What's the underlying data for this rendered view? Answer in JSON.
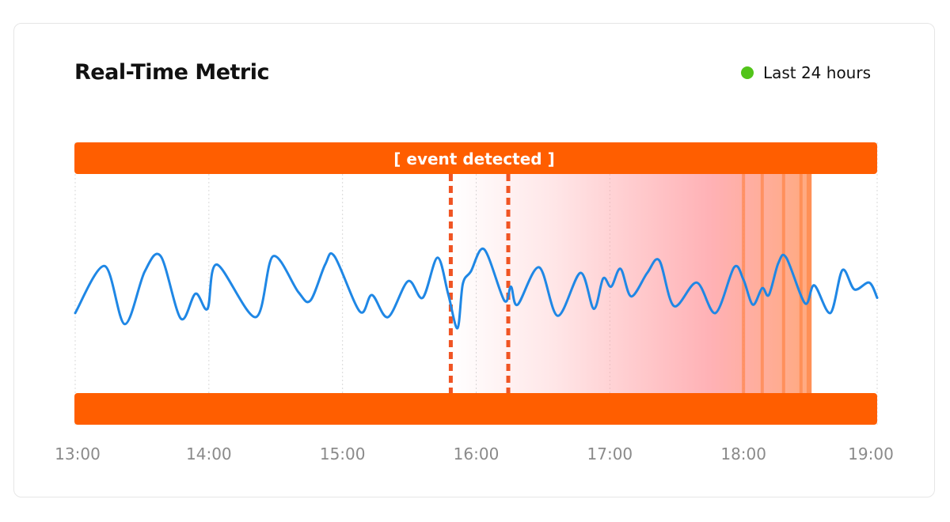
{
  "header": {
    "title": "Real-Time Metric",
    "legend_label": "Last 24 hours",
    "legend_color": "#52c41a"
  },
  "chart_data": {
    "type": "line",
    "title": "Real-Time Metric",
    "xlabel": "",
    "ylabel": "",
    "x_unit": "hours",
    "xlim": [
      13,
      19
    ],
    "ylim": [
      0,
      1
    ],
    "grid": true,
    "tick_values": [
      13,
      14,
      15,
      16,
      17,
      18,
      19
    ],
    "tick_labels": [
      "13:00",
      "14:00",
      "15:00",
      "16:00",
      "17:00",
      "18:00",
      "19:00"
    ],
    "line_color": "#1f87e5",
    "series": [
      {
        "name": "Metric",
        "x": [
          13.0,
          13.22,
          13.37,
          13.52,
          13.64,
          13.79,
          13.9,
          13.99,
          14.06,
          14.35,
          14.48,
          14.67,
          14.76,
          14.87,
          14.94,
          15.13,
          15.22,
          15.34,
          15.49,
          15.6,
          15.71,
          15.79,
          15.86,
          15.9,
          15.96,
          16.06,
          16.21,
          16.26,
          16.31,
          16.47,
          16.61,
          16.78,
          16.88,
          16.95,
          17.01,
          17.08,
          17.16,
          17.28,
          17.37,
          17.48,
          17.65,
          17.79,
          17.93,
          18.0,
          18.07,
          18.14,
          18.19,
          18.26,
          18.32,
          18.46,
          18.53,
          18.65,
          18.74,
          18.83,
          18.94,
          19.0
        ],
        "y": [
          0.31,
          0.65,
          0.23,
          0.61,
          0.72,
          0.27,
          0.45,
          0.34,
          0.66,
          0.28,
          0.72,
          0.46,
          0.4,
          0.66,
          0.72,
          0.32,
          0.44,
          0.28,
          0.54,
          0.42,
          0.71,
          0.45,
          0.2,
          0.52,
          0.61,
          0.77,
          0.4,
          0.5,
          0.37,
          0.64,
          0.29,
          0.6,
          0.34,
          0.56,
          0.5,
          0.63,
          0.43,
          0.6,
          0.69,
          0.36,
          0.53,
          0.31,
          0.64,
          0.55,
          0.37,
          0.49,
          0.44,
          0.67,
          0.71,
          0.38,
          0.51,
          0.31,
          0.62,
          0.48,
          0.53,
          0.42
        ]
      }
    ],
    "annotations": [
      {
        "text": "[ event detected ]",
        "type": "top-band"
      },
      {
        "type": "vertical-dashed",
        "x": 15.81
      },
      {
        "type": "vertical-dashed",
        "x": 16.24
      },
      {
        "type": "highlight-gradient",
        "x_start": 15.81,
        "x_end": 18.51
      },
      {
        "type": "vertical-lines",
        "x": [
          18.0,
          18.14,
          18.3,
          18.43,
          18.49
        ]
      }
    ],
    "band_color": "#ff5e00",
    "event_line_color": "#f05423"
  }
}
